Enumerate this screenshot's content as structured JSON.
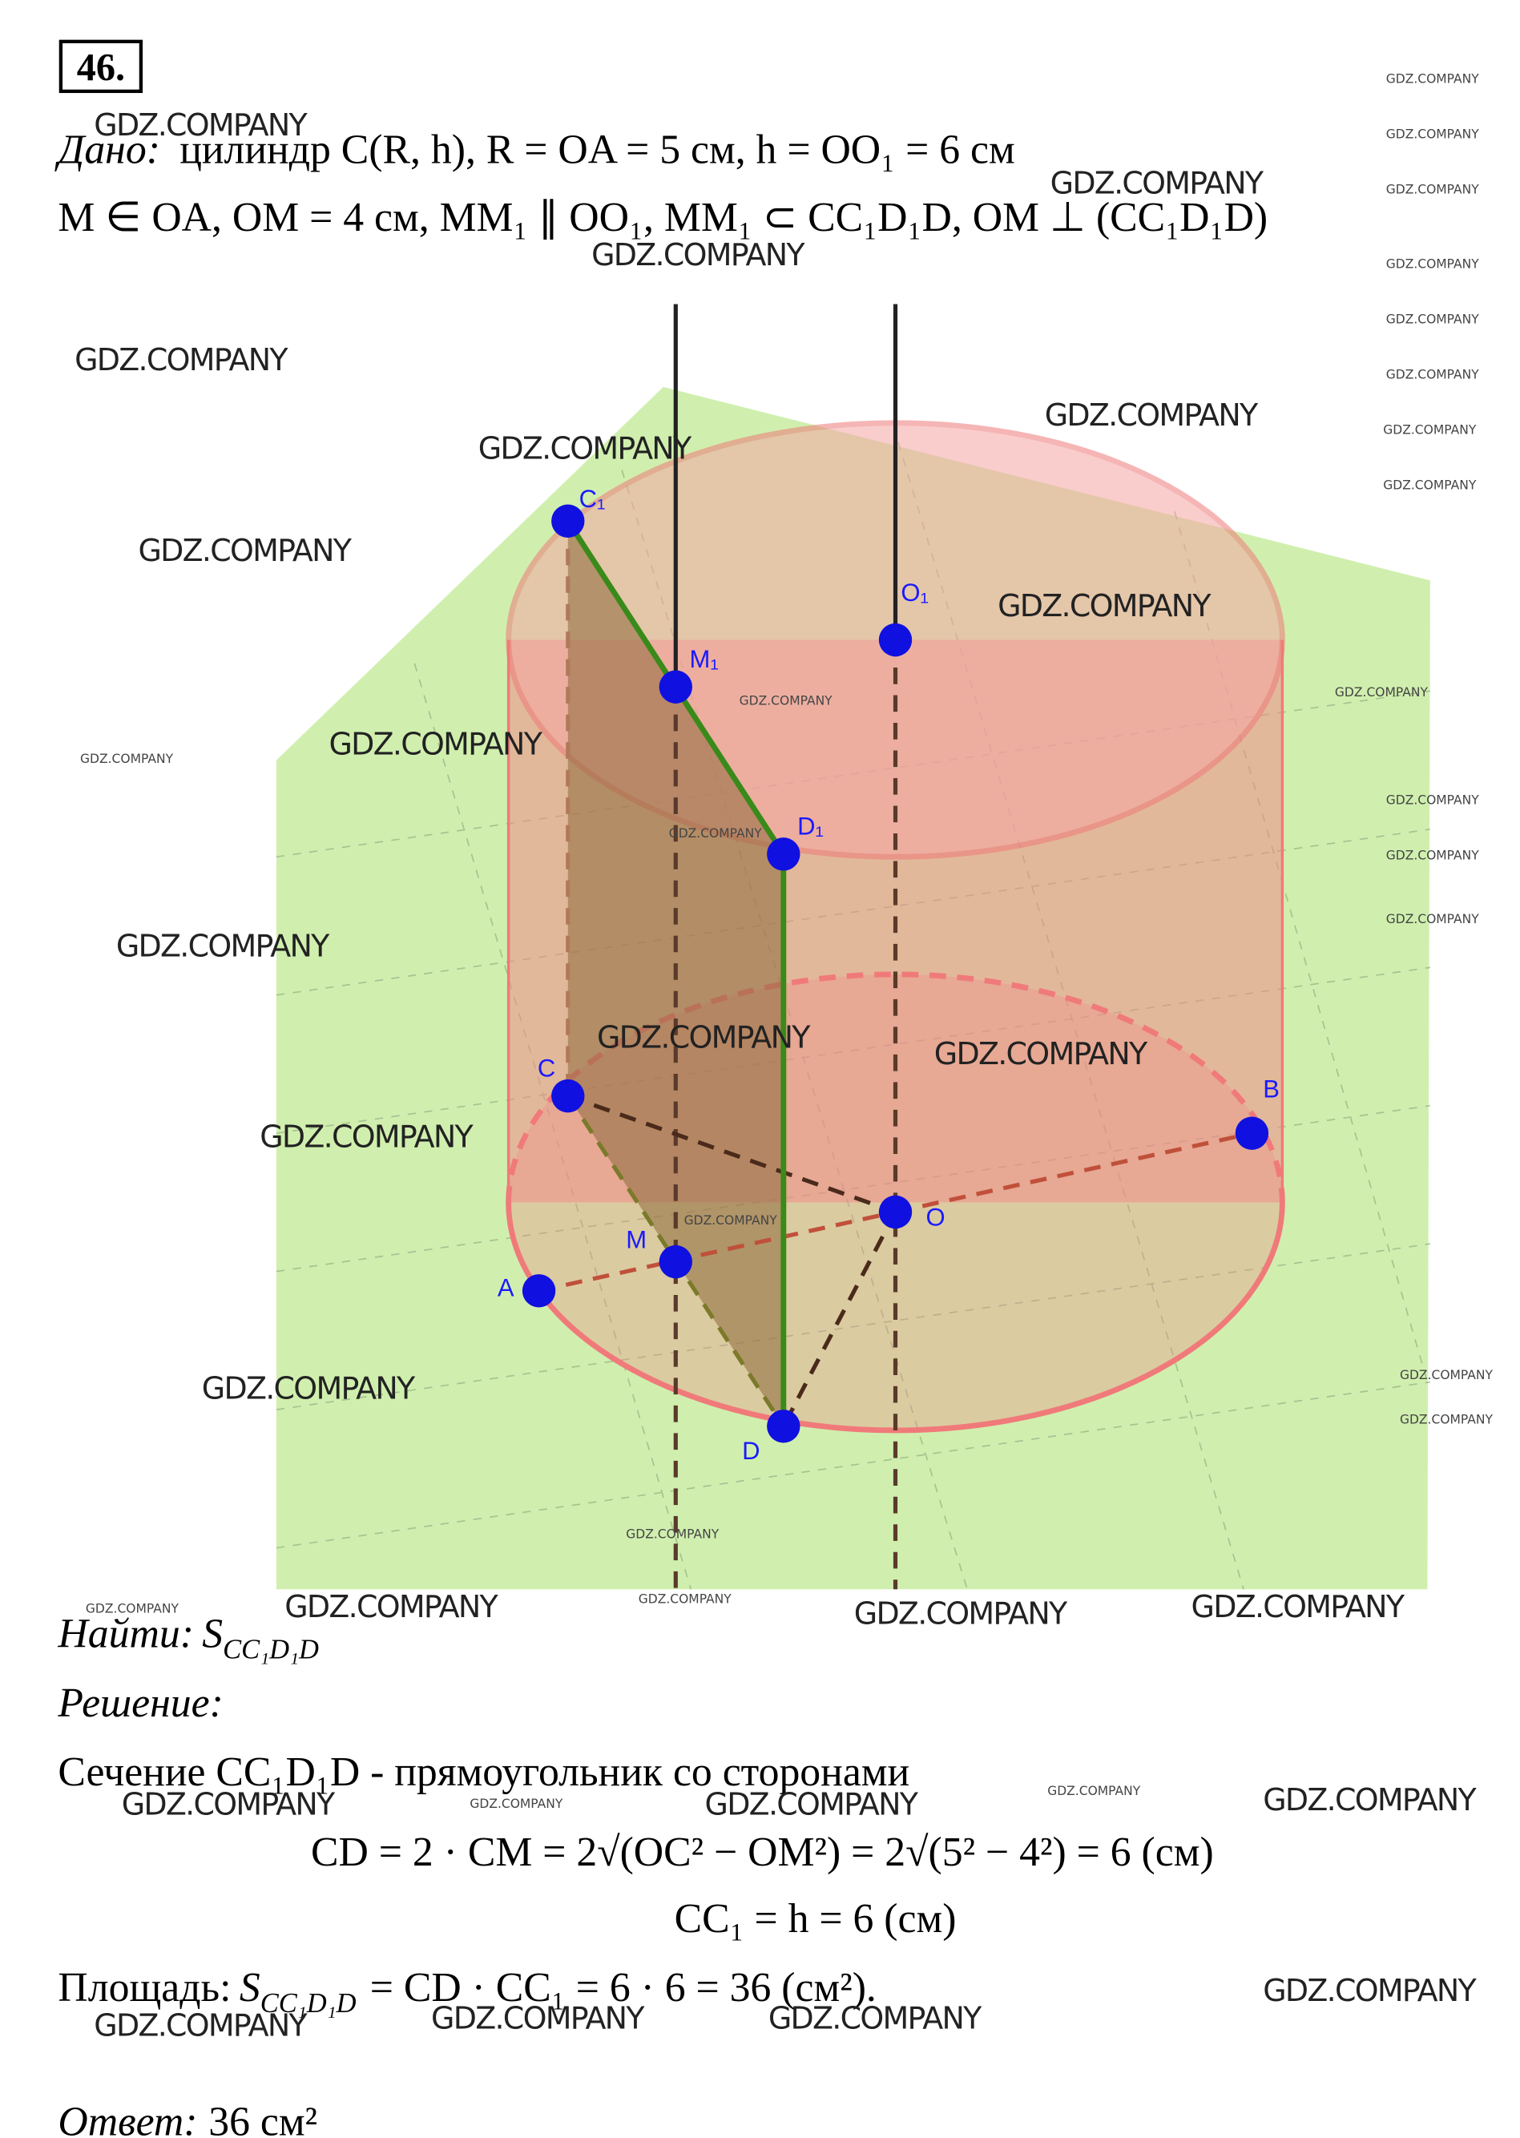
{
  "problem_number": "46.",
  "given": {
    "label": "Дано:",
    "line1": "цилиндр C(R, h), R = OA = 5 см,  h = OO₁ = 6 см",
    "line2": "M ∈ OA, OM = 4 см,  MM₁ ∥ OO₁,  MM₁ ⊂ CC₁D₁D,  OM ⊥ (CC₁D₁D)"
  },
  "diagram": {
    "points": [
      "C₁",
      "M₁",
      "O₁",
      "D₁",
      "C",
      "A",
      "M",
      "O",
      "B",
      "D"
    ]
  },
  "find": {
    "label": "Найти:",
    "symbol": "S",
    "subscript": "CC₁D₁D"
  },
  "solution": {
    "label": "Решение:",
    "intro": "Сечение CC₁D₁D - прямоугольник со сторонами",
    "eq1": "CD = 2 · CM = 2√(OC² − OM²) = 2√(5² − 4²) = 6 (см)",
    "eq2": "CC₁ = h = 6 (см)",
    "area_label": "Площадь:",
    "area_symbol": "S",
    "area_subscript": "CC₁D₁D",
    "area_rest": "= CD · CC₁ = 6 · 6 = 36 (см²)."
  },
  "answer": {
    "label": "Ответ:",
    "text": "36 см²"
  },
  "watermark": "GDZ.COMPANY"
}
